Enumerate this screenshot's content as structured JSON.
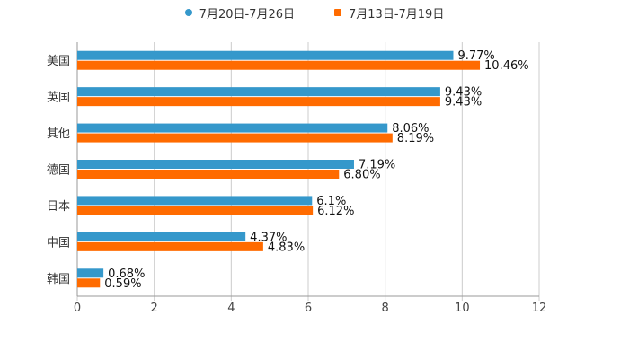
{
  "chart_data": {
    "type": "bar",
    "orientation": "horizontal",
    "categories": [
      "美国",
      "英国",
      "其他",
      "德国",
      "日本",
      "中国",
      "韩国"
    ],
    "series": [
      {
        "name": "7月20日-7月26日",
        "color": "#3598cb",
        "marker": "circle",
        "values": [
          9.77,
          9.43,
          8.06,
          7.19,
          6.1,
          4.37,
          0.68
        ],
        "labels": [
          "9.77%",
          "9.43%",
          "8.06%",
          "7.19%",
          "6.1%",
          "4.37%",
          "0.68%"
        ]
      },
      {
        "name": "7月13日-7月19日",
        "color": "#ff6b00",
        "marker": "square",
        "values": [
          10.46,
          9.43,
          8.19,
          6.8,
          6.12,
          4.83,
          0.59
        ],
        "labels": [
          "10.46%",
          "9.43%",
          "8.19%",
          "6.80%",
          "6.12%",
          "4.83%",
          "0.59%"
        ]
      }
    ],
    "xlim": [
      0,
      12
    ],
    "xticks": [
      0,
      2,
      4,
      6,
      8,
      10,
      12
    ],
    "xtick_labels": [
      "0",
      "2",
      "4",
      "6",
      "8",
      "10",
      "12"
    ],
    "grid": true,
    "legend_position": "top-center"
  }
}
